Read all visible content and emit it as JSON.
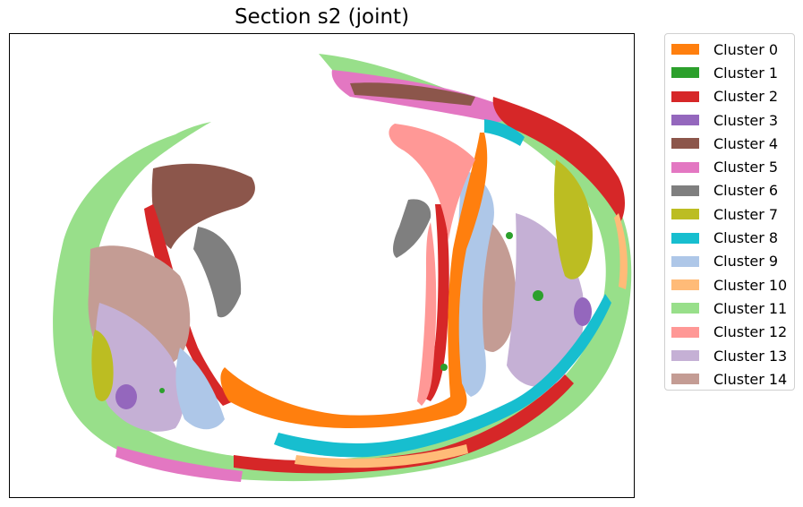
{
  "chart_data": {
    "type": "scatter",
    "title": "Section s2 (joint)",
    "xlabel": "",
    "ylabel": "",
    "axes_ticks": false,
    "grid": false,
    "legend_placement": "outside-right",
    "series": [
      {
        "name": "Cluster 0",
        "color": "#ff7f0e"
      },
      {
        "name": "Cluster 1",
        "color": "#2ca02c"
      },
      {
        "name": "Cluster 2",
        "color": "#d62728"
      },
      {
        "name": "Cluster 3",
        "color": "#9467bd"
      },
      {
        "name": "Cluster 4",
        "color": "#8c564b"
      },
      {
        "name": "Cluster 5",
        "color": "#e377c2"
      },
      {
        "name": "Cluster 6",
        "color": "#7f7f7f"
      },
      {
        "name": "Cluster 7",
        "color": "#bcbd22"
      },
      {
        "name": "Cluster 8",
        "color": "#17becf"
      },
      {
        "name": "Cluster 9",
        "color": "#aec7e8"
      },
      {
        "name": "Cluster 10",
        "color": "#ffbb78"
      },
      {
        "name": "Cluster 11",
        "color": "#98df8a"
      },
      {
        "name": "Cluster 12",
        "color": "#ff9896"
      },
      {
        "name": "Cluster 13",
        "color": "#c5b0d5"
      },
      {
        "name": "Cluster 14",
        "color": "#c49c94"
      }
    ]
  }
}
